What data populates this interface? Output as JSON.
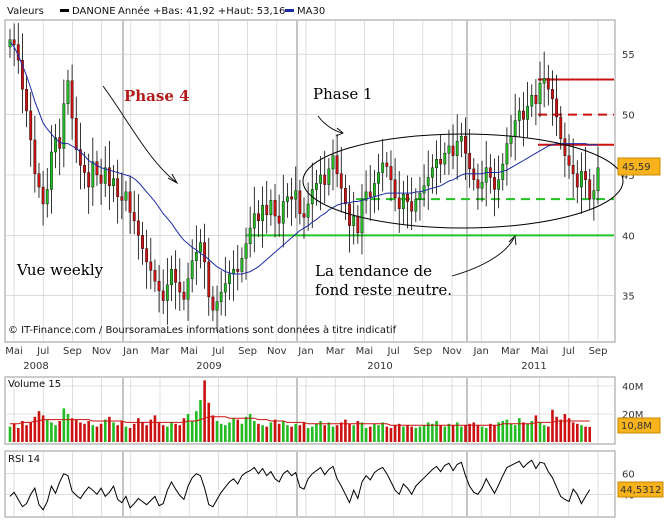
{
  "header": {
    "label": "Valeurs",
    "ticker": "DANONE",
    "range_text": "Année +Bas: 41,92 +Haut: 53,16",
    "ma_label": "MA30"
  },
  "footer": {
    "credit": "© IT-Finance.com / BoursoramaLes informations sont données à titre indicatif"
  },
  "annotations": {
    "phase4": "Phase 4",
    "phase1": "Phase 1",
    "vue": "Vue weekly",
    "tendance_line1": "La tendance de",
    "tendance_line2": "fond reste neutre."
  },
  "colors": {
    "up": "#22bb22",
    "down": "#cc1111",
    "ma": "#1a2aa6",
    "support": "#22c422",
    "resistance": "#cc1111",
    "price_badge": "#f7b21c",
    "grid": "#c8c8c8"
  },
  "chart_data": [
    {
      "type": "candlestick",
      "title": "DANONE",
      "period": "weekly",
      "x_tick_labels": [
        "Mai",
        "Jul",
        "Sep",
        "Nov",
        "Jan",
        "Mar",
        "Mai",
        "Jul",
        "Sep",
        "Nov",
        "Jan",
        "Mar",
        "Mai",
        "Jul",
        "Sep",
        "Nov",
        "Jan",
        "Mar",
        "Mai",
        "Jul",
        "Sep"
      ],
      "year_labels": [
        "2008",
        "2009",
        "2010",
        "2011"
      ],
      "y_ticks": [
        35,
        40,
        45,
        50,
        55
      ],
      "ylim": [
        31.5,
        57.5
      ],
      "last_price_label": "45,59",
      "year_high": 53.16,
      "year_low": 41.92,
      "ma_period": 30,
      "closes": [
        56.2,
        55.8,
        54.5,
        52.1,
        50.3,
        47.9,
        45.1,
        44.0,
        42.6,
        43.8,
        46.9,
        48.1,
        47.2,
        50.9,
        52.8,
        49.7,
        47.1,
        45.8,
        45.2,
        44.0,
        46.1,
        45.0,
        44.3,
        45.6,
        44.1,
        44.7,
        43.2,
        42.9,
        43.6,
        41.9,
        41.2,
        40.0,
        38.9,
        37.8,
        37.1,
        36.2,
        35.4,
        34.6,
        35.9,
        37.2,
        36.1,
        35.3,
        34.7,
        36.4,
        37.9,
        38.6,
        39.4,
        37.8,
        34.9,
        33.8,
        34.5,
        35.3,
        36.0,
        36.8,
        37.2,
        37.0,
        38.1,
        39.3,
        40.6,
        41.8,
        41.2,
        42.5,
        41.7,
        42.9,
        41.6,
        41.0,
        42.8,
        43.2,
        43.0,
        43.7,
        41.8,
        41.5,
        42.6,
        43.8,
        44.3,
        45.0,
        44.2,
        45.5,
        46.6,
        45.1,
        43.9,
        42.6,
        40.8,
        41.6,
        40.2,
        42.9,
        43.6,
        43.2,
        44.3,
        45.2,
        46.0,
        45.7,
        44.6,
        43.1,
        42.2,
        43.4,
        42.8,
        42.0,
        43.0,
        43.5,
        44.1,
        44.8,
        45.6,
        46.3,
        45.9,
        46.8,
        47.4,
        46.6,
        47.8,
        48.2,
        46.8,
        45.5,
        44.6,
        43.9,
        44.4,
        45.6,
        44.8,
        43.8,
        44.6,
        45.9,
        47.6,
        48.2,
        49.5,
        50.3,
        49.6,
        50.7,
        51.6,
        50.9,
        52.6,
        53.0,
        52.1,
        51.3,
        49.8,
        48.0,
        46.6,
        45.8,
        45.1,
        44.0,
        45.3,
        44.6,
        43.0,
        43.7,
        45.59
      ],
      "ma30": [
        56.0,
        55.6,
        54.9,
        54.1,
        53.2,
        52.2,
        51.1,
        50.2,
        49.3,
        48.8,
        48.4,
        48.0,
        47.7,
        47.6,
        47.6,
        47.4,
        47.2,
        46.9,
        46.6,
        46.2,
        46.0,
        45.8,
        45.6,
        45.5,
        45.4,
        45.3,
        45.2,
        45.1,
        45.0,
        44.9,
        44.7,
        44.4,
        44.0,
        43.6,
        43.2,
        42.8,
        42.3,
        41.8,
        41.4,
        41.0,
        40.5,
        40.0,
        39.6,
        39.3,
        39.0,
        38.8,
        38.5,
        38.3,
        38.0,
        37.7,
        37.4,
        37.2,
        37.0,
        36.9,
        36.8,
        36.8,
        36.8,
        36.9,
        37.0,
        37.2,
        37.4,
        37.7,
        38.0,
        38.3,
        38.6,
        38.9,
        39.2,
        39.5,
        39.8,
        40.1,
        40.4,
        40.6,
        40.8,
        41.1,
        41.3,
        41.6,
        41.8,
        42.1,
        42.3,
        42.5,
        42.6,
        42.7,
        42.7,
        42.8,
        42.8,
        42.9,
        43.0,
        43.1,
        43.2,
        43.3,
        43.4,
        43.5,
        43.5,
        43.5,
        43.5,
        43.5,
        43.5,
        43.5,
        43.6,
        43.6,
        43.7,
        43.8,
        43.9,
        44.0,
        44.1,
        44.3,
        44.5,
        44.6,
        44.8,
        45.0,
        45.1,
        45.1,
        45.1,
        45.1,
        45.1,
        45.2,
        45.2,
        45.2,
        45.2,
        45.3,
        45.4,
        45.6,
        45.8,
        46.0,
        46.2,
        46.4,
        46.6,
        46.8,
        47.0,
        47.2,
        47.4,
        47.5,
        47.6,
        47.6,
        47.6,
        47.6,
        47.6,
        47.6,
        47.6,
        47.6,
        47.5,
        47.5,
        47.5
      ],
      "lines": [
        {
          "kind": "support",
          "style": "solid",
          "value": 40.0,
          "color": "#22c422"
        },
        {
          "kind": "support",
          "style": "dashed",
          "value": 43.0,
          "color": "#22c422"
        },
        {
          "kind": "resistance",
          "style": "solid",
          "value": 52.9,
          "color": "#cc1111"
        },
        {
          "kind": "resistance",
          "style": "dashed",
          "value": 50.0,
          "color": "#cc1111"
        },
        {
          "kind": "resistance",
          "style": "solid",
          "value": 47.5,
          "color": "#cc1111"
        }
      ]
    },
    {
      "type": "bar",
      "title": "Volume 15",
      "y_tick_labels": [
        "40M",
        "20M"
      ],
      "last_value_label": "10,8M",
      "unit": "M",
      "ylim": [
        0,
        45
      ],
      "values": [
        11,
        13,
        10,
        15,
        12,
        14,
        18,
        22,
        19,
        16,
        14,
        12,
        15,
        24,
        20,
        17,
        16,
        14,
        13,
        15,
        12,
        11,
        13,
        16,
        18,
        14,
        12,
        15,
        11,
        10,
        13,
        17,
        14,
        12,
        16,
        19,
        14,
        12,
        11,
        14,
        13,
        12,
        17,
        20,
        15,
        22,
        30,
        44,
        28,
        19,
        15,
        13,
        12,
        14,
        17,
        16,
        13,
        18,
        20,
        15,
        13,
        12,
        11,
        14,
        16,
        13,
        15,
        12,
        11,
        13,
        12,
        14,
        10,
        11,
        13,
        15,
        12,
        14,
        11,
        12,
        14,
        16,
        13,
        12,
        15,
        14,
        10,
        11,
        13,
        12,
        14,
        11,
        10,
        12,
        13,
        11,
        12,
        11,
        10,
        11,
        12,
        14,
        13,
        15,
        12,
        11,
        13,
        12,
        14,
        11,
        12,
        13,
        14,
        12,
        11,
        10,
        13,
        12,
        14,
        15,
        16,
        13,
        12,
        17,
        14,
        13,
        15,
        19,
        14,
        12,
        11,
        23,
        18,
        16,
        20,
        17,
        14,
        13,
        12,
        11,
        10.8
      ],
      "ma_values": [
        13,
        13,
        13,
        14,
        14,
        14,
        15,
        15,
        16,
        16,
        16,
        16,
        16,
        16,
        16,
        16,
        16,
        16,
        16,
        16,
        15,
        15,
        15,
        15,
        15,
        15,
        15,
        15,
        14,
        14,
        14,
        14,
        14,
        14,
        14,
        14,
        14,
        14,
        14,
        14,
        14,
        14,
        14,
        15,
        15,
        15,
        16,
        17,
        18,
        18,
        18,
        18,
        18,
        17,
        17,
        17,
        17,
        17,
        17,
        17,
        16,
        16,
        16,
        15,
        15,
        15,
        15,
        14,
        14,
        14,
        14,
        14,
        13,
        13,
        13,
        13,
        13,
        13,
        13,
        13,
        13,
        13,
        13,
        13,
        13,
        13,
        13,
        13,
        13,
        13,
        13,
        13,
        12,
        12,
        12,
        12,
        12,
        12,
        12,
        12,
        12,
        12,
        12,
        12,
        12,
        12,
        12,
        12,
        12,
        12,
        12,
        12,
        12,
        12,
        12,
        12,
        12,
        12,
        12,
        13,
        13,
        13,
        13,
        13,
        13,
        13,
        13,
        14,
        14,
        14,
        14,
        14,
        15,
        15,
        15,
        15,
        15,
        15,
        15,
        15,
        15
      ]
    },
    {
      "type": "line",
      "title": "RSI 14",
      "y_tick_labels": [
        "60",
        "40"
      ],
      "last_value_label": "44,5312",
      "ylim": [
        20,
        80
      ],
      "values": [
        38,
        42,
        35,
        28,
        31,
        40,
        46,
        30,
        25,
        33,
        48,
        41,
        52,
        60,
        58,
        43,
        39,
        36,
        42,
        47,
        44,
        40,
        46,
        38,
        42,
        48,
        35,
        32,
        38,
        27,
        31,
        36,
        33,
        30,
        34,
        38,
        29,
        31,
        44,
        52,
        45,
        39,
        35,
        48,
        56,
        60,
        58,
        46,
        30,
        28,
        35,
        42,
        47,
        52,
        55,
        50,
        58,
        61,
        63,
        66,
        60,
        65,
        58,
        62,
        55,
        52,
        60,
        63,
        58,
        61,
        47,
        45,
        55,
        60,
        63,
        66,
        59,
        64,
        67,
        55,
        48,
        40,
        32,
        44,
        36,
        52,
        58,
        54,
        61,
        64,
        66,
        60,
        52,
        44,
        40,
        50,
        46,
        40,
        48,
        52,
        56,
        60,
        64,
        67,
        62,
        68,
        70,
        63,
        69,
        71,
        58,
        48,
        42,
        40,
        46,
        55,
        48,
        41,
        49,
        58,
        66,
        68,
        70,
        72,
        66,
        70,
        73,
        65,
        71,
        70,
        62,
        56,
        47,
        38,
        35,
        33,
        45,
        40,
        31,
        38,
        44.53
      ]
    }
  ]
}
